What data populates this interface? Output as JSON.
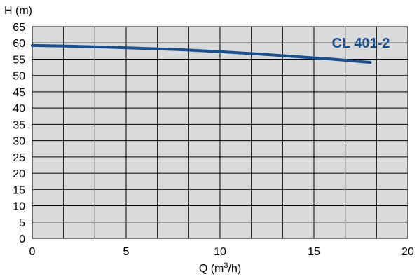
{
  "chart_data": {
    "type": "line",
    "model_label": "CL 401-2",
    "xlabel_main": "Q (m",
    "xlabel_sup": "3",
    "xlabel_tail": "/h)",
    "ylabel": "H (m)",
    "xlim": [
      0,
      20
    ],
    "ylim": [
      0,
      65
    ],
    "x_ticks": [
      0,
      5,
      10,
      15,
      20
    ],
    "y_ticks": [
      0,
      5,
      10,
      15,
      20,
      25,
      30,
      35,
      40,
      45,
      50,
      55,
      60,
      65
    ],
    "grid": true,
    "grid_x_divisions": 12,
    "series": [
      {
        "x": [
          0,
          2,
          4,
          6,
          8,
          10,
          12,
          14,
          16,
          17,
          18
        ],
        "y": [
          59.2,
          59.0,
          58.7,
          58.3,
          57.9,
          57.3,
          56.6,
          55.8,
          55.0,
          54.5,
          54.0
        ]
      }
    ],
    "colors": {
      "plot_background": "#d9dadb",
      "grid": "#000000",
      "curve": "#1b4f8c",
      "model_label": "#1b4f8c"
    }
  }
}
